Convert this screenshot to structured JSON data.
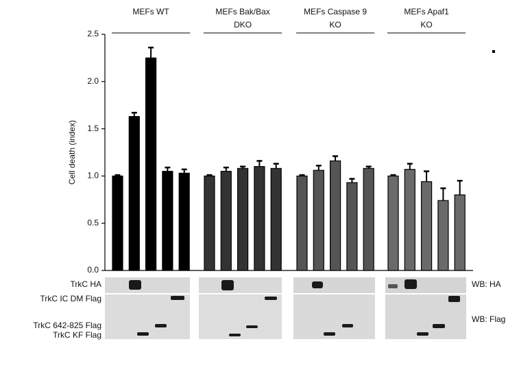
{
  "chart_data": {
    "type": "bar",
    "y_label": "Cell death (index)",
    "ylim": [
      0,
      2.5
    ],
    "yticks": [
      {
        "value": 0,
        "label": "0.0"
      },
      0.5,
      {
        "value": 1,
        "label": "1.0"
      },
      1.5,
      {
        "value": 2,
        "label": "2.0"
      },
      2.5
    ],
    "series": [
      {
        "name": "MEFs WT",
        "color": "#000000",
        "values": [
          1.0,
          1.63,
          2.25,
          1.05,
          1.03
        ],
        "errors": [
          0.01,
          0.04,
          0.11,
          0.04,
          0.04
        ]
      },
      {
        "name": "MEFs Bak/Bax\nDKO",
        "color": "#333333",
        "values": [
          1.0,
          1.05,
          1.08,
          1.1,
          1.08
        ],
        "errors": [
          0.01,
          0.04,
          0.02,
          0.06,
          0.05
        ]
      },
      {
        "name": "MEFs Caspase 9\nKO",
        "color": "#555555",
        "values": [
          1.0,
          1.06,
          1.16,
          0.93,
          1.08
        ],
        "errors": [
          0.01,
          0.05,
          0.05,
          0.04,
          0.02
        ]
      },
      {
        "name": "MEFs Apaf1\nKO",
        "color": "#6a6a6a",
        "values": [
          1.0,
          1.07,
          0.94,
          0.74,
          0.8
        ],
        "errors": [
          0.01,
          0.06,
          0.11,
          0.13,
          0.15
        ]
      }
    ],
    "blot": {
      "row_labels": [
        "TrkC HA",
        "TrkC IC DM Flag",
        "TrkC 642-825 Flag",
        "TrkC KF Flag"
      ],
      "wb_labels": [
        "WB: HA",
        "WB: Flag"
      ]
    }
  }
}
